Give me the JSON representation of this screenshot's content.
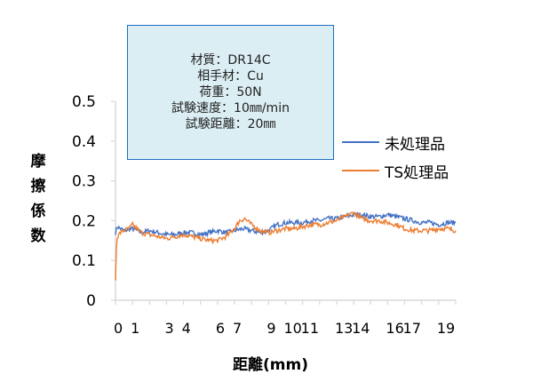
{
  "info_box": {
    "lines": [
      "材質：DR14C",
      "相手材：Cu",
      "荷重：50N",
      "試験速度：10㎜/min",
      "試験距離：20㎜"
    ]
  },
  "colors": {
    "series_1": "#4472c4",
    "series_2": "#ed7d31",
    "axis": "#d9d9d9",
    "box_border": "#1f6fbf",
    "box_fill": "#dbeef4"
  },
  "chart_data": {
    "type": "line",
    "title": "",
    "ylabel": "摩擦係数",
    "xlabel": "距離(mm)",
    "ylim": [
      0,
      0.5
    ],
    "xlim": [
      0,
      20
    ],
    "yticks": [
      0,
      0.1,
      0.2,
      0.3,
      0.4,
      0.5
    ],
    "ytick_labels": [
      "0",
      "0.1",
      "0.2",
      "0.3",
      "0.4",
      "0.5"
    ],
    "xtick_labels": [
      "0",
      "1",
      "3",
      "4",
      "6",
      "7",
      "9",
      "10",
      "11",
      "13",
      "14",
      "16",
      "17",
      "19"
    ],
    "xtick_values": [
      0,
      1,
      3,
      4,
      6,
      7,
      9,
      10,
      11,
      13,
      14,
      16,
      17,
      19
    ],
    "grid": false,
    "legend_position": "right",
    "series": [
      {
        "name": "未処理品",
        "x": [
          0,
          0.1,
          0.3,
          0.5,
          1,
          1.5,
          2,
          2.5,
          3,
          3.5,
          4,
          4.5,
          5,
          5.5,
          6,
          6.5,
          7,
          7.5,
          8,
          8.5,
          9,
          9.5,
          10,
          10.5,
          11,
          11.5,
          12,
          12.5,
          13,
          13.5,
          14,
          14.5,
          15,
          15.5,
          16,
          16.5,
          17,
          17.5,
          18,
          18.5,
          19,
          19.5,
          20
        ],
        "values": [
          0.17,
          0.185,
          0.18,
          0.175,
          0.18,
          0.17,
          0.175,
          0.17,
          0.165,
          0.165,
          0.17,
          0.17,
          0.165,
          0.17,
          0.175,
          0.17,
          0.175,
          0.18,
          0.175,
          0.17,
          0.175,
          0.19,
          0.195,
          0.195,
          0.195,
          0.2,
          0.2,
          0.205,
          0.205,
          0.21,
          0.215,
          0.215,
          0.21,
          0.21,
          0.215,
          0.21,
          0.205,
          0.2,
          0.195,
          0.195,
          0.19,
          0.195,
          0.195
        ]
      },
      {
        "name": "TS処理品",
        "x": [
          0,
          0.05,
          0.1,
          0.3,
          0.5,
          0.8,
          1,
          1.5,
          2,
          2.5,
          3,
          3.5,
          4,
          4.5,
          5,
          5.5,
          6,
          6.5,
          7,
          7.3,
          7.6,
          8,
          8.5,
          9,
          9.5,
          10,
          10.5,
          11,
          11.5,
          12,
          12.5,
          13,
          13.5,
          14,
          14.5,
          15,
          15.5,
          16,
          16.5,
          17,
          17.5,
          18,
          18.5,
          19,
          19.5,
          20
        ],
        "values": [
          0.05,
          0.13,
          0.16,
          0.17,
          0.175,
          0.18,
          0.19,
          0.17,
          0.165,
          0.16,
          0.155,
          0.16,
          0.165,
          0.16,
          0.155,
          0.15,
          0.15,
          0.16,
          0.18,
          0.2,
          0.205,
          0.19,
          0.175,
          0.17,
          0.175,
          0.18,
          0.18,
          0.185,
          0.19,
          0.19,
          0.195,
          0.2,
          0.21,
          0.22,
          0.205,
          0.2,
          0.2,
          0.195,
          0.19,
          0.18,
          0.175,
          0.175,
          0.175,
          0.18,
          0.18,
          0.175
        ]
      }
    ]
  }
}
